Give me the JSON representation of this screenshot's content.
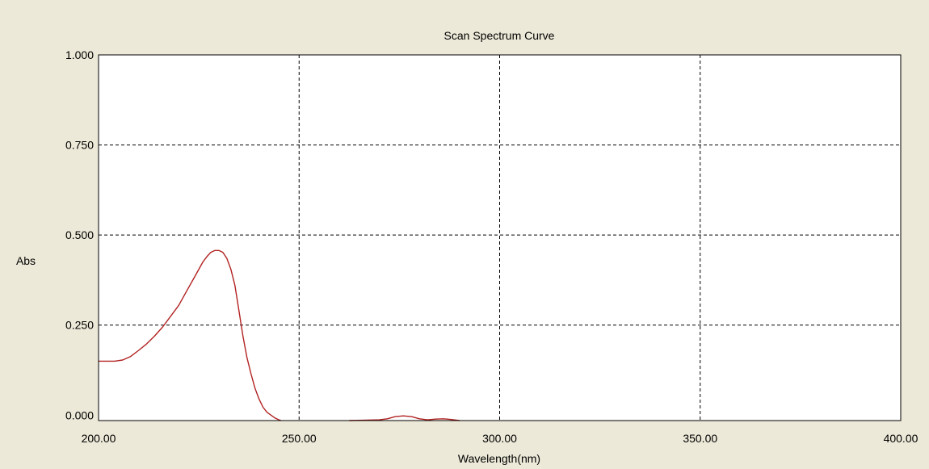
{
  "chart_data": {
    "type": "line",
    "title": "Scan Spectrum Curve",
    "xlabel": "Wavelength(nm)",
    "ylabel": "Abs",
    "xlim": [
      200,
      400
    ],
    "ylim": [
      -0.015,
      1.0
    ],
    "x_ticks": [
      200,
      250,
      300,
      350,
      400
    ],
    "x_tick_labels": [
      "200.00",
      "250.00",
      "300.00",
      "350.00",
      "400.00"
    ],
    "y_ticks": [
      0,
      0.25,
      0.5,
      0.75,
      1.0
    ],
    "y_tick_labels": [
      "0.000",
      "0.250",
      "0.500",
      "0.750",
      "1.000"
    ],
    "grid": true,
    "series": [
      {
        "color": "#B22222",
        "segments": [
          {
            "x": [
              200,
              202,
              204,
              206,
              208,
              210,
              212,
              214,
              216,
              218,
              220,
              222,
              224,
              226,
              227,
              228,
              229,
              230,
              231,
              232,
              233,
              234,
              235,
              236,
              237,
              238,
              239,
              240,
              241,
              242,
              243,
              244,
              245,
              245.5
            ],
            "y": [
              0.15,
              0.15,
              0.15,
              0.153,
              0.163,
              0.18,
              0.198,
              0.22,
              0.245,
              0.275,
              0.305,
              0.345,
              0.385,
              0.425,
              0.44,
              0.452,
              0.457,
              0.457,
              0.452,
              0.435,
              0.405,
              0.36,
              0.29,
              0.22,
              0.16,
              0.115,
              0.075,
              0.045,
              0.022,
              0.008,
              0.0,
              -0.008,
              -0.013,
              -0.015
            ]
          },
          {
            "x": [
              262.5,
              266,
              270,
              272,
              274,
              276,
              278,
              280,
              282,
              284,
              286,
              288,
              290
            ],
            "y": [
              -0.015,
              -0.014,
              -0.013,
              -0.01,
              -0.004,
              -0.002,
              -0.004,
              -0.01,
              -0.013,
              -0.011,
              -0.01,
              -0.012,
              -0.015
            ]
          }
        ]
      }
    ]
  }
}
